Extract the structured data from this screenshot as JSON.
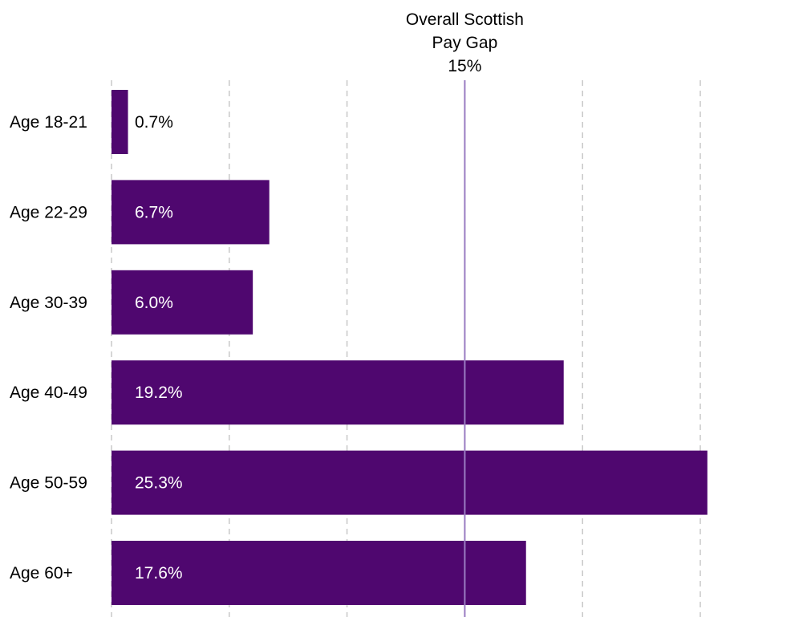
{
  "chart_data": {
    "type": "bar",
    "orientation": "horizontal",
    "categories": [
      "Age 18-21",
      "Age 22-29",
      "Age 30-39",
      "Age 40-49",
      "Age 50-59",
      "Age 60+"
    ],
    "values": [
      0.7,
      6.7,
      6.0,
      19.2,
      25.3,
      17.6
    ],
    "data_labels": [
      "0.7%",
      "6.7%",
      "6.0%",
      "19.2%",
      "25.3%",
      "17.6%"
    ],
    "xlim": [
      0,
      25
    ],
    "x_gridlines": [
      0,
      5,
      10,
      15,
      20,
      25
    ],
    "grid": "vertical dashed",
    "legend": "none",
    "reference_line": {
      "value": 15,
      "label_lines": [
        "Overall Scottish",
        "Pay Gap",
        "15%"
      ]
    },
    "colors": {
      "bar": "#4f076f",
      "reference_line": "#9a7cc2",
      "gridline": "#c8c8c8",
      "label_inside": "#ffffff",
      "label_outside": "#000000"
    }
  }
}
